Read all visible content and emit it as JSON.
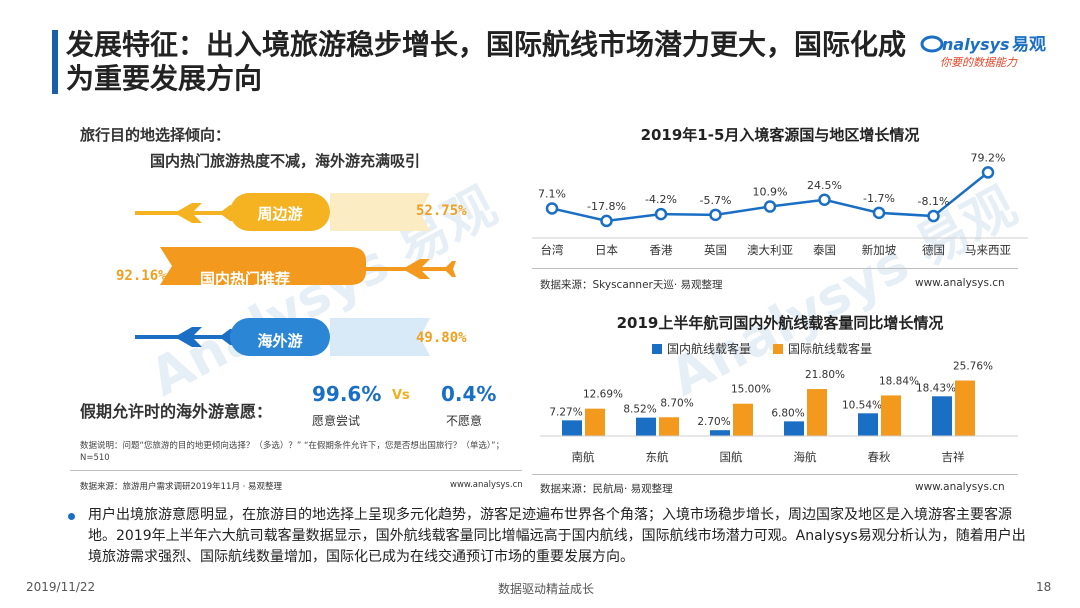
{
  "title": "发展特征：出入境旅游稳步增长，国际航线市场潜力更大，国际化成为重要发展方向",
  "logo": {
    "brand_en": "nalysys",
    "brand_cn": "易观",
    "slogan": "你要的数据能力"
  },
  "left": {
    "heading": "旅行目的地选择倾向：",
    "subheading": "国内热门旅游热度不减，海外游充满吸引",
    "items": [
      {
        "label": "周边游",
        "pct": "52.75%"
      },
      {
        "label": "国内热门推荐",
        "pct": "92.16%"
      },
      {
        "label": "海外游",
        "pct": "49.80%"
      }
    ],
    "holiday": {
      "label": "假期允许时的海外游意愿：",
      "yes_value": "99.6%",
      "yes_label": "愿意尝试",
      "vs": "Vs",
      "no_value": "0.4%",
      "no_label": "不愿意"
    },
    "note": "数据说明：问题“您旅游的目的地更倾向选择？（多选）？” “在假期条件允许下，您是否想出国旅行？（单选）”；N=510",
    "source": "数据来源：旅游用户需求调研2019年11月 · 易观整理",
    "url": "www.analysys.cn"
  },
  "chart_data": [
    {
      "type": "line",
      "title": "2019年1-5月入境客源国与地区增长情况",
      "categories": [
        "台湾",
        "日本",
        "香港",
        "英国",
        "澳大利亚",
        "泰国",
        "新加坡",
        "德国",
        "马来西亚"
      ],
      "values": [
        7.1,
        -17.8,
        -4.2,
        -5.7,
        10.9,
        24.5,
        -1.7,
        -8.1,
        79.2
      ],
      "labels": [
        "7.1%",
        "-17.8%",
        "-4.2%",
        "-5.7%",
        "10.9%",
        "24.5%",
        "-1.7%",
        "-8.1%",
        "79.2%"
      ],
      "color": "#1a6fc4",
      "source": "数据来源：Skyscanner天巡· 易观整理",
      "url": "www.analysys.cn"
    },
    {
      "type": "bar",
      "title": "2019上半年航司国内外航线载客量同比增长情况",
      "categories": [
        "南航",
        "东航",
        "国航",
        "海航",
        "春秋",
        "吉祥"
      ],
      "series": [
        {
          "name": "国内航线载客量",
          "values": [
            7.27,
            8.52,
            2.7,
            6.8,
            10.54,
            18.43
          ],
          "labels": [
            "7.27%",
            "8.52%",
            "2.70%",
            "6.80%",
            "10.54%",
            "18.43%"
          ],
          "color": "#1a6fc4"
        },
        {
          "name": "国际航线载客量",
          "values": [
            12.69,
            8.7,
            15.0,
            21.8,
            18.84,
            25.76
          ],
          "labels": [
            "12.69%",
            "8.70%",
            "15.00%",
            "21.80%",
            "18.84%",
            "25.76%"
          ],
          "color": "#f39a1e"
        }
      ],
      "source": "数据来源：民航局· 易观整理",
      "url": "www.analysys.cn"
    }
  ],
  "bullet": "用户出境旅游意愿明显，在旅游目的地选择上呈现多元化趋势，游客足迹遍布世界各个角落；入境市场稳步增长，周边国家及地区是入境游客主要客源地。2019年上半年六大航司载客量数据显示，国外航线载客量同比增幅远高于国内航线，国际航线市场潜力可观。Analysys易观分析认为，随着用户出境旅游需求强烈、国际航线数量增加，国际化已成为在线交通预订市场的重要发展方向。",
  "footer": {
    "date": "2019/11/22",
    "mid": "数据驱动精益成长",
    "page": "18"
  }
}
